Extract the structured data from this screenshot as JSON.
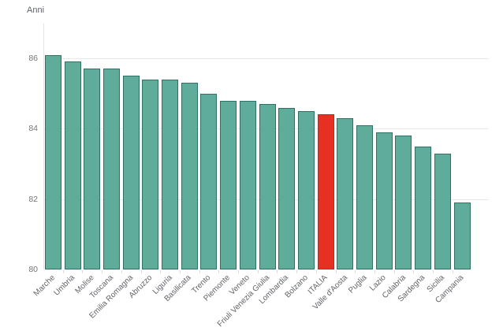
{
  "chart": {
    "y_axis_title": "Anni",
    "y_ticks": [
      86,
      84,
      82,
      80
    ],
    "colors": {
      "bar_fill": "#5fac9b",
      "bar_border": "#2f7265",
      "highlight_fill": "#e63122",
      "highlight_border": "#aa3226",
      "grid_line": "#e8e8e8",
      "axis_line": "#e3e3e3",
      "tick_text": "#757575",
      "label_text": "#5f6368"
    }
  },
  "chart_data": {
    "type": "bar",
    "title": "",
    "xlabel": "",
    "ylabel": "Anni",
    "ylim": [
      80,
      87
    ],
    "grid": true,
    "legend": false,
    "categories": [
      "Marche",
      "Umbria",
      "Molise",
      "Toscana",
      "Emilia Romagna",
      "Abruzzo",
      "Liguria",
      "Basilicata",
      "Trento",
      "Piemonte",
      "Veneto",
      "Friuli Venezia Giulia",
      "Lombardia",
      "Bolzano",
      "ITALIA",
      "Valle d'Aosta",
      "Puglia",
      "Lazio",
      "Calabria",
      "Sardegna",
      "Sicilia",
      "Campania"
    ],
    "values": [
      86.1,
      85.9,
      85.7,
      85.7,
      85.5,
      85.4,
      85.4,
      85.3,
      85.0,
      84.8,
      84.8,
      84.7,
      84.6,
      84.5,
      84.4,
      84.3,
      84.1,
      83.9,
      83.8,
      83.5,
      83.3,
      81.9
    ],
    "highlight_category": "ITALIA"
  }
}
